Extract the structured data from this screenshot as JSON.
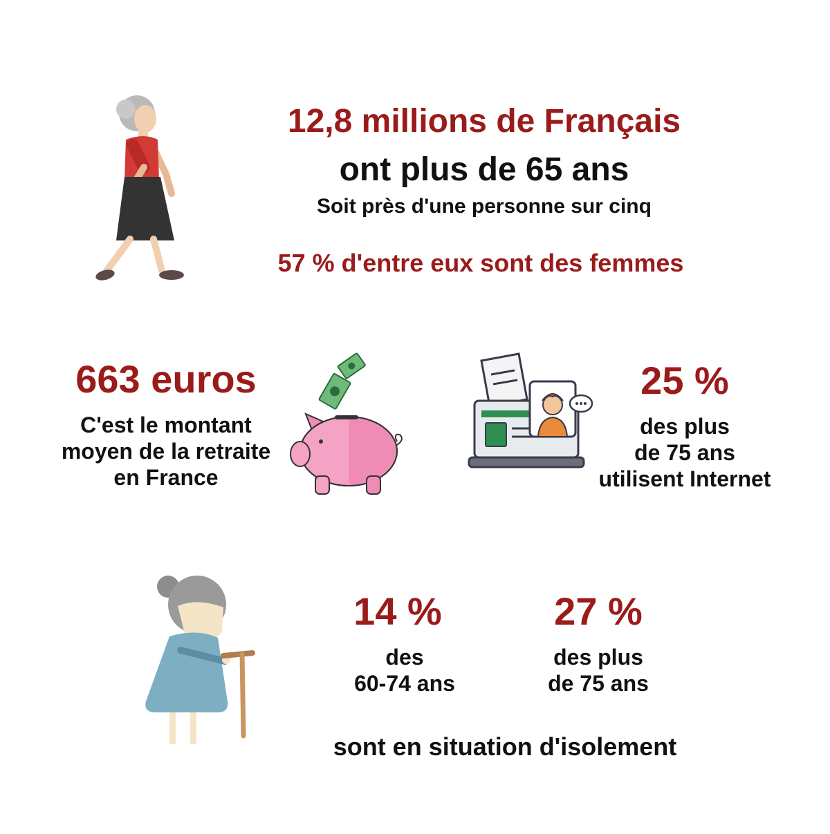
{
  "headline": {
    "line1": "12,8 millions de Français",
    "line2": "ont plus de 65 ans",
    "line3": "Soit près d'une personne sur cinq",
    "women": "57 % d'entre eux sont des femmes"
  },
  "pension": {
    "value": "663 euros",
    "desc_line1": "C'est le montant",
    "desc_line2": "moyen de la retraite",
    "desc_line3": "en France"
  },
  "internet": {
    "value": "25 %",
    "desc_line1": "des plus",
    "desc_line2": "de 75 ans",
    "desc_line3": "utilisent Internet"
  },
  "isolation": {
    "group1_value": "14 %",
    "group1_line1": "des",
    "group1_line2": "60-74 ans",
    "group2_value": "27 %",
    "group2_line1": "des plus",
    "group2_line2": "de 75 ans",
    "caption": "sont en situation d'isolement"
  },
  "colors": {
    "accent": "#9b1b1b",
    "text": "#111111",
    "piggy": "#f4a3c4",
    "screen_green": "#2f8f52",
    "coat_blue": "#7eaec2"
  },
  "icons": [
    "walking-woman-icon",
    "piggy-bank-icon",
    "banknote-icon",
    "laptop-video-call-icon",
    "elderly-woman-with-cane-icon"
  ]
}
